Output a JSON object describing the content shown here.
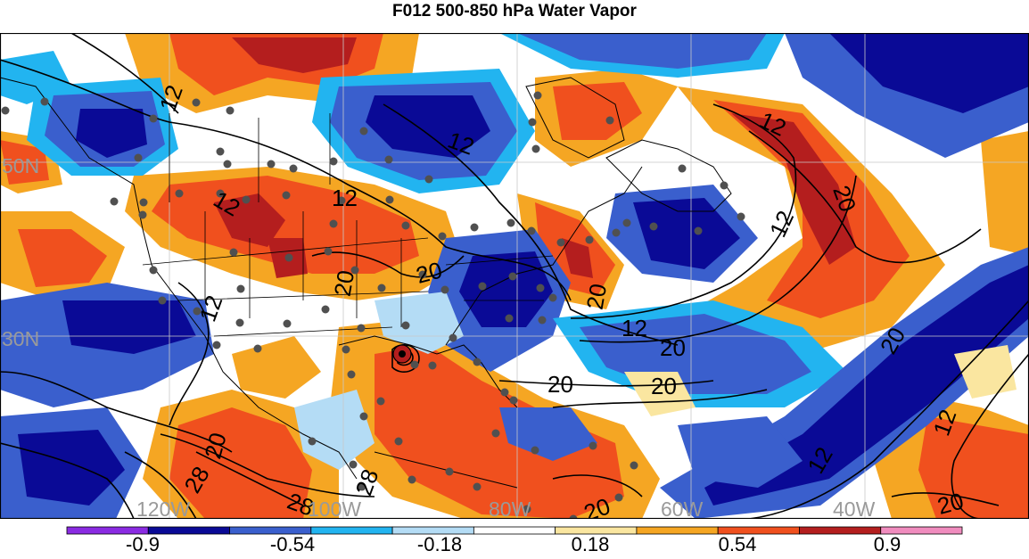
{
  "title": "F012 500-850 hPa Water Vapor",
  "map": {
    "lon_labels": [
      "120W",
      "100W",
      "80W",
      "60W",
      "40W"
    ],
    "lat_labels": [
      "50N",
      "30N"
    ],
    "contour_labels": [
      "12",
      "12",
      "12",
      "12",
      "12",
      "12",
      "12",
      "12",
      "12",
      "20",
      "20",
      "20",
      "20",
      "20",
      "20",
      "20",
      "20",
      "20",
      "28",
      "28",
      "28",
      "20"
    ],
    "shading_colors": {
      "deep_purple": "#8a2be2",
      "navy": "#0a0a96",
      "blue": "#3a5fcd",
      "cyan": "#22b4f0",
      "light_blue": "#b4dcf5",
      "white": "#ffffff",
      "light_yellow": "#fae6a0",
      "orange": "#f5a623",
      "red_orange": "#f0501e",
      "dark_red": "#b41e1e",
      "pink": "#f08cbe"
    },
    "station_color": "#505050"
  },
  "colorbar": {
    "tick_labels": [
      "-0.9",
      "-0.54",
      "-0.18",
      "0.18",
      "0.54",
      "0.9"
    ],
    "colors": [
      "#8a2be2",
      "#0a0a96",
      "#3a5fcd",
      "#22b4f0",
      "#b4dcf5",
      "#ffffff",
      "#fae6a0",
      "#f5a623",
      "#f0501e",
      "#b41e1e",
      "#f08cbe"
    ]
  }
}
